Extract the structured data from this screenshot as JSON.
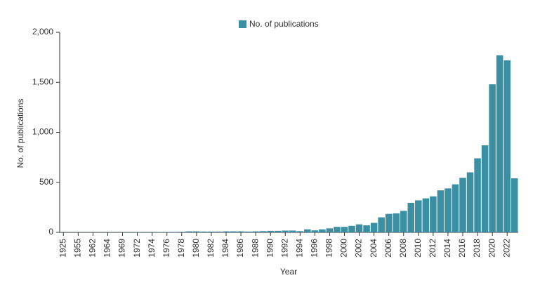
{
  "chart_data": {
    "type": "bar",
    "xlabel": "Year",
    "ylabel": "No. of publications",
    "categories": [
      "1925",
      null,
      "1955",
      null,
      "1962",
      null,
      "1964",
      null,
      "1969",
      null,
      "1972",
      null,
      "1974",
      null,
      "1976",
      null,
      "1978",
      null,
      "1980",
      null,
      "1982",
      null,
      "1984",
      null,
      "1986",
      null,
      "1988",
      null,
      "1990",
      null,
      "1992",
      null,
      "1994",
      null,
      "1996",
      null,
      "1998",
      null,
      "2000",
      null,
      "2002",
      null,
      "2004",
      null,
      "2006",
      null,
      "2008",
      null,
      "2010",
      null,
      "2012",
      null,
      "2014",
      null,
      "2016",
      null,
      "2018",
      null,
      "2020",
      null,
      "2022",
      null
    ],
    "series": [
      {
        "name": "No. of publications",
        "color": "#3a8fa3",
        "values": [
          1,
          1,
          1,
          1,
          1,
          1,
          1,
          1,
          2,
          2,
          2,
          2,
          2,
          3,
          3,
          3,
          5,
          10,
          10,
          8,
          8,
          8,
          10,
          10,
          10,
          8,
          10,
          12,
          15,
          15,
          18,
          18,
          12,
          30,
          20,
          30,
          40,
          55,
          55,
          65,
          80,
          70,
          95,
          150,
          185,
          190,
          215,
          295,
          320,
          340,
          360,
          420,
          440,
          480,
          545,
          600,
          740,
          870,
          1480,
          1770,
          1720,
          540
        ]
      }
    ],
    "ylim": [
      0,
      2000
    ],
    "yticks": [
      0,
      500,
      {
        "value": 1000,
        "label": "1,000"
      },
      {
        "value": 1500,
        "label": "1,500"
      },
      {
        "value": 2000,
        "label": "2,000"
      }
    ],
    "legend": "top"
  }
}
